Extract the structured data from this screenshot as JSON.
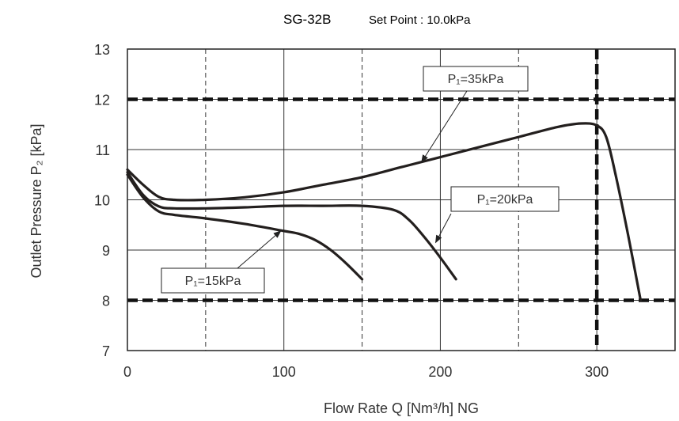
{
  "chart_data": {
    "type": "line",
    "title": "SG-32B",
    "subtitle": "Set Point : 10.0kPa",
    "xlabel": "Flow Rate Q [Nm³/h] NG",
    "ylabel": "Outlet Pressure P₂ [kPa]",
    "xlim": [
      0,
      350
    ],
    "ylim": [
      7,
      13
    ],
    "xticks": [
      "0",
      "100",
      "200",
      "300"
    ],
    "xtick_values": [
      0,
      100,
      200,
      300
    ],
    "yticks": [
      "7",
      "8",
      "9",
      "10",
      "11",
      "12",
      "13"
    ],
    "ytick_values": [
      7,
      8,
      9,
      10,
      11,
      12,
      13
    ],
    "grid": true,
    "reference_lines": {
      "horizontal": [
        8,
        12
      ],
      "vertical": [
        300
      ]
    },
    "series": [
      {
        "name": "P₁=35kPa",
        "x": [
          0,
          10,
          20,
          30,
          50,
          75,
          100,
          125,
          150,
          175,
          200,
          225,
          250,
          275,
          290,
          300,
          306,
          312,
          320,
          328
        ],
        "y": [
          10.6,
          10.3,
          10.06,
          10.0,
          10.0,
          10.05,
          10.15,
          10.3,
          10.45,
          10.65,
          10.85,
          11.05,
          11.25,
          11.45,
          11.52,
          11.48,
          11.25,
          10.5,
          9.3,
          8.0
        ]
      },
      {
        "name": "P₁=20kPa",
        "x": [
          0,
          10,
          20,
          30,
          50,
          75,
          100,
          125,
          150,
          170,
          180,
          190,
          200,
          210
        ],
        "y": [
          10.55,
          10.1,
          9.87,
          9.83,
          9.83,
          9.85,
          9.88,
          9.88,
          9.88,
          9.8,
          9.6,
          9.25,
          8.85,
          8.42
        ]
      },
      {
        "name": "P₁=15kPa",
        "x": [
          0,
          10,
          20,
          30,
          50,
          75,
          100,
          110,
          120,
          130,
          140,
          150
        ],
        "y": [
          10.5,
          10.05,
          9.77,
          9.7,
          9.63,
          9.52,
          9.38,
          9.32,
          9.2,
          9.0,
          8.73,
          8.42
        ]
      }
    ],
    "annotations": [
      {
        "text": "P₁=35kPa",
        "points_to": [
          188,
          10.75
        ]
      },
      {
        "text": "P₁=20kPa",
        "points_to": [
          197,
          9.15
        ]
      },
      {
        "text": "P₁=15kPa",
        "points_to": [
          98,
          9.38
        ]
      }
    ]
  }
}
